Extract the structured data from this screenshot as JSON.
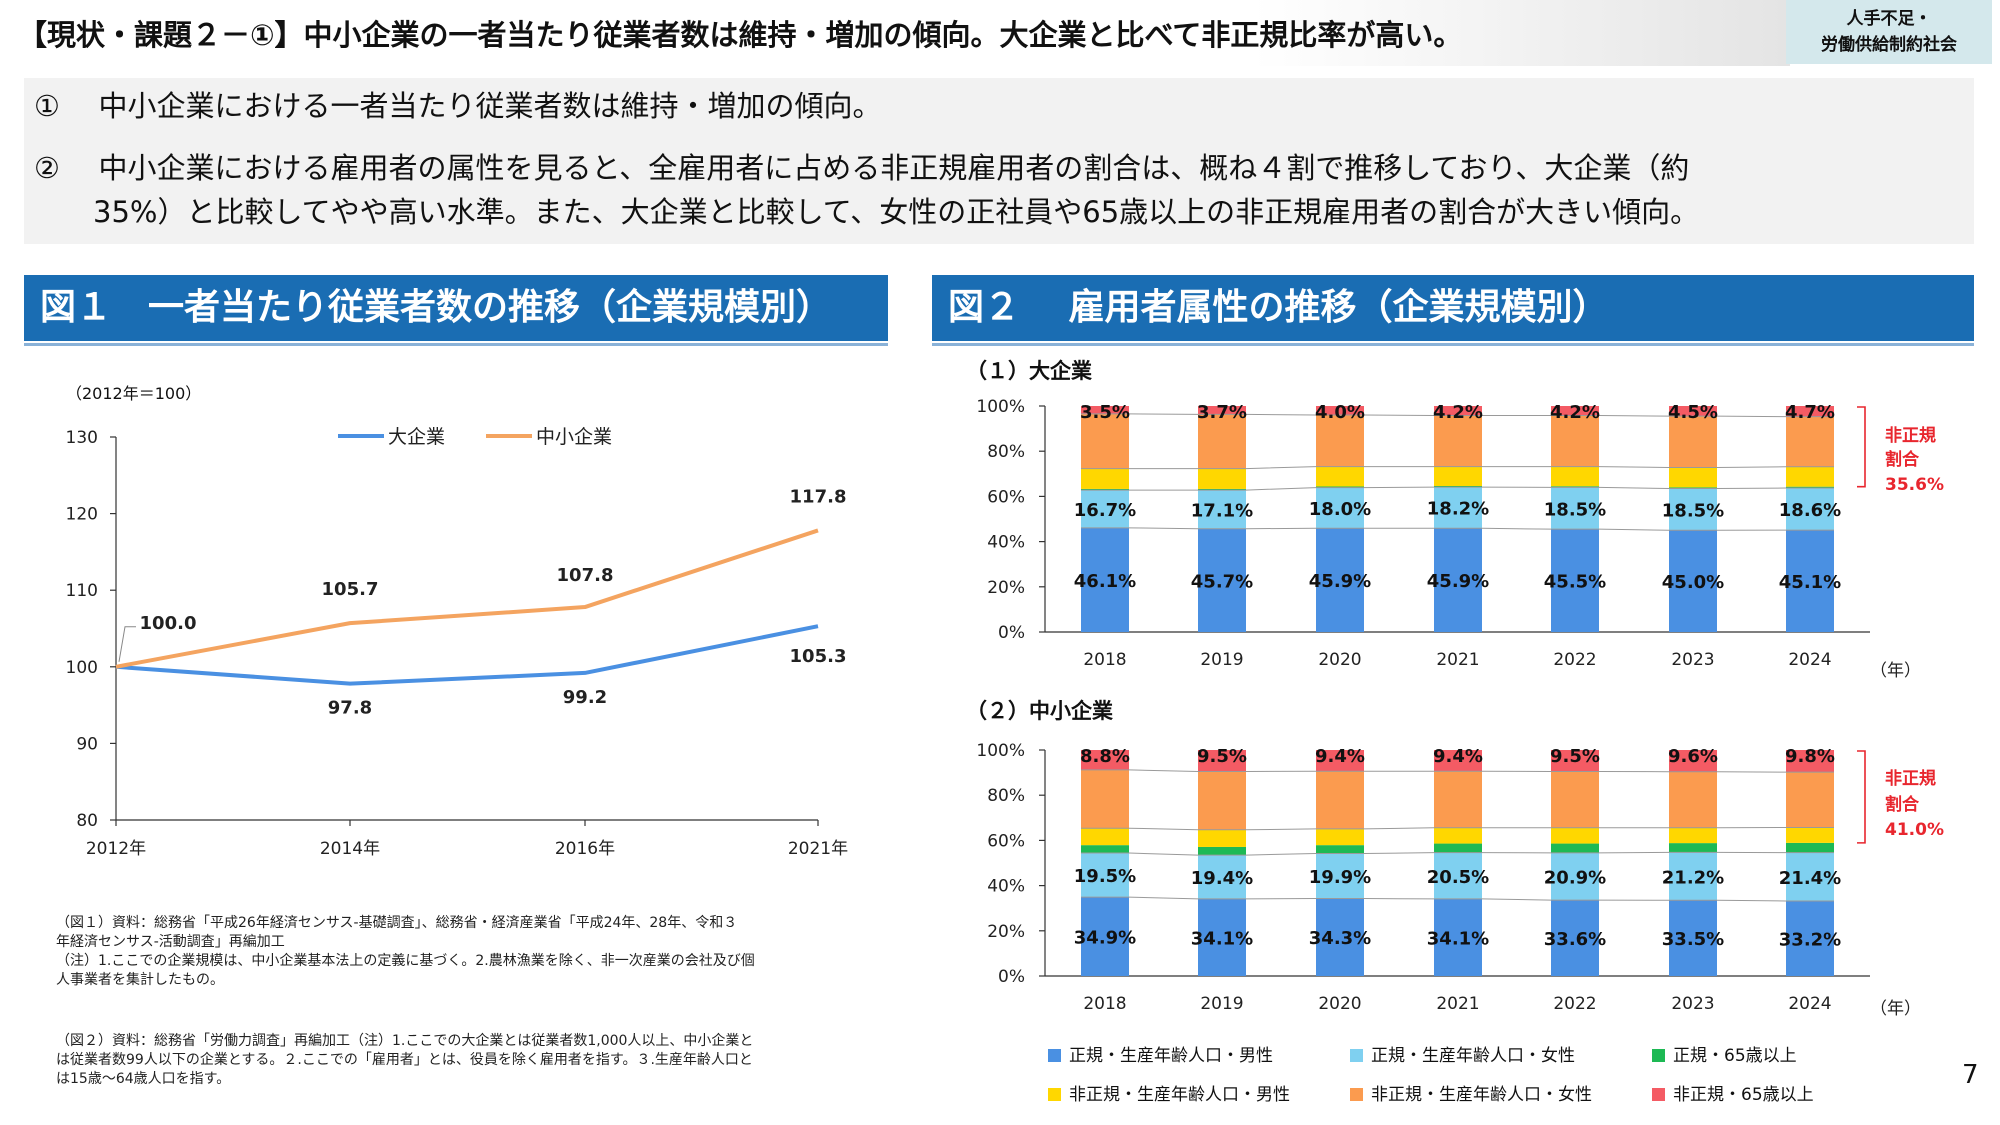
{
  "header": {
    "title": "【現状・課題２－①】中小企業の一者当たり従業者数は維持・増加の傾向。大企業と比べて非正規比率が高い。",
    "tag_line1": "人手不足・",
    "tag_line2": "労働供給制約社会"
  },
  "summary": {
    "item1_num": "①",
    "item1_text": "中小企業における一者当たり従業者数は維持・増加の傾向。",
    "item2_num": "②",
    "item2_line1": "中小企業における雇用者の属性を見ると、全雇用者に占める非正規雇用者の割合は、概ね４割で推移しており、大企業（約",
    "item2_line2": "35%）と比較してやや高い水準。また、大企業と比較して、女性の正社員や65歳以上の非正規雇用者の割合が大きい傾向。"
  },
  "fig1": {
    "header": "図１　一者当たり従業者数の推移（企業規模別）",
    "note_top": "（2012年＝100）",
    "notes": [
      "（図１）資料：総務省「平成26年経済センサス-基礎調査」、総務省・経済産業省「平成24年、28年、令和３",
      "年経済センサス-活動調査」再編加工",
      "（注）1.ここでの企業規模は、中小企業基本法上の定義に基づく。2.農林漁業を除く、非一次産業の会社及び個",
      "人事業者を集計したもの。"
    ]
  },
  "fig2": {
    "header": "図２　 雇用者属性の推移（企業規模別）",
    "notes": [
      "（図２）資料：総務省「労働力調査」再編加工（注）1.ここでの大企業とは従業者数1,000人以上、中小企業と",
      "は従業者数99人以下の企業とする。２.ここでの「雇用者」とは、役員を除く雇用者を指す。３.生産年齢人口と",
      "は15歳～64歳人口を指す。"
    ],
    "legend": [
      {
        "label": "正規・生産年齢人口・男性",
        "color": "#4a90e2"
      },
      {
        "label": "正規・生産年齢人口・女性",
        "color": "#7fd0f0"
      },
      {
        "label": "正規・65歳以上",
        "color": "#1db954"
      },
      {
        "label": "非正規・生産年齢人口・男性",
        "color": "#ffd700"
      },
      {
        "label": "非正規・生産年齢人口・女性",
        "color": "#fb9b4f"
      },
      {
        "label": "非正規・65歳以上",
        "color": "#f45b64"
      }
    ]
  },
  "page_number": "7",
  "chart_data": [
    {
      "type": "line",
      "title": "",
      "ylabel": "",
      "x": [
        "2012年",
        "2014年",
        "2016年",
        "2021年"
      ],
      "ylim": [
        80,
        130
      ],
      "yticks": [
        80,
        90,
        100,
        110,
        120,
        130
      ],
      "legend_position": "top",
      "series": [
        {
          "name": "大企業",
          "values": [
            100.0,
            97.8,
            99.2,
            105.3
          ],
          "color": "#4a90e2",
          "labels": [
            "",
            "97.8",
            "99.2",
            "105.3"
          ]
        },
        {
          "name": "中小企業",
          "values": [
            100.0,
            105.7,
            107.8,
            117.8
          ],
          "color": "#f4a460",
          "labels": [
            "100.0",
            "105.7",
            "107.8",
            "117.8"
          ]
        }
      ]
    },
    {
      "type": "bar",
      "stacked": true,
      "title": "（１）大企業",
      "unit_label": "（年）",
      "categories": [
        "2018",
        "2019",
        "2020",
        "2021",
        "2022",
        "2023",
        "2024"
      ],
      "ylim": [
        0,
        100
      ],
      "yticks": [
        "0%",
        "20%",
        "40%",
        "60%",
        "80%",
        "100%"
      ],
      "series": [
        {
          "name": "正規・生産年齢人口・男性",
          "values": [
            46.1,
            45.7,
            45.9,
            45.9,
            45.5,
            45.0,
            45.1
          ],
          "labels": [
            "46.1%",
            "45.7%",
            "45.9%",
            "45.9%",
            "45.5%",
            "45.0%",
            "45.1%"
          ]
        },
        {
          "name": "正規・生産年齢人口・女性",
          "values": [
            16.7,
            17.1,
            18.0,
            18.2,
            18.5,
            18.5,
            18.6
          ],
          "labels": [
            "16.7%",
            "17.1%",
            "18.0%",
            "18.2%",
            "18.5%",
            "18.5%",
            "18.6%"
          ]
        },
        {
          "name": "正規・65歳以上",
          "values": [
            0.5,
            0.5,
            0.5,
            0.5,
            0.5,
            0.5,
            0.6
          ]
        },
        {
          "name": "非正規・生産年齢人口・男性",
          "values": [
            9.0,
            9.0,
            8.8,
            8.6,
            8.7,
            8.8,
            8.8
          ]
        },
        {
          "name": "非正規・生産年齢人口・女性",
          "values": [
            24.2,
            24.0,
            22.8,
            22.6,
            22.6,
            22.7,
            22.2
          ]
        },
        {
          "name": "非正規・65歳以上",
          "values": [
            3.5,
            3.7,
            4.0,
            4.2,
            4.2,
            4.5,
            4.7
          ],
          "labels": [
            "3.5%",
            "3.7%",
            "4.0%",
            "4.2%",
            "4.2%",
            "4.5%",
            "4.7%"
          ]
        }
      ],
      "bracket_label": [
        "非正規",
        "割合"
      ],
      "bracket_value": "35.6%"
    },
    {
      "type": "bar",
      "stacked": true,
      "title": "（２）中小企業",
      "unit_label": "（年）",
      "categories": [
        "2018",
        "2019",
        "2020",
        "2021",
        "2022",
        "2023",
        "2024"
      ],
      "ylim": [
        0,
        100
      ],
      "yticks": [
        "0%",
        "20%",
        "40%",
        "60%",
        "80%",
        "100%"
      ],
      "series": [
        {
          "name": "正規・生産年齢人口・男性",
          "values": [
            34.9,
            34.1,
            34.3,
            34.1,
            33.6,
            33.5,
            33.2
          ],
          "labels": [
            "34.9%",
            "34.1%",
            "34.3%",
            "34.1%",
            "33.6%",
            "33.5%",
            "33.2%"
          ]
        },
        {
          "name": "正規・生産年齢人口・女性",
          "values": [
            19.5,
            19.4,
            19.9,
            20.5,
            20.9,
            21.2,
            21.4
          ],
          "labels": [
            "19.5%",
            "19.4%",
            "19.9%",
            "20.5%",
            "20.9%",
            "21.2%",
            "21.4%"
          ]
        },
        {
          "name": "正規・65歳以上",
          "values": [
            3.5,
            3.6,
            3.7,
            4.0,
            4.1,
            4.1,
            4.3
          ]
        },
        {
          "name": "非正規・生産年齢人口・男性",
          "values": [
            7.5,
            7.6,
            7.2,
            7.0,
            7.0,
            6.8,
            6.8
          ]
        },
        {
          "name": "非正規・生産年齢人口・女性",
          "values": [
            25.8,
            25.8,
            25.5,
            25.0,
            24.9,
            24.8,
            24.5
          ]
        },
        {
          "name": "非正規・65歳以上",
          "values": [
            8.8,
            9.5,
            9.4,
            9.4,
            9.5,
            9.6,
            9.8
          ],
          "labels": [
            "8.8%",
            "9.5%",
            "9.4%",
            "9.4%",
            "9.5%",
            "9.6%",
            "9.8%"
          ]
        }
      ],
      "bracket_label": [
        "非正規",
        "割合"
      ],
      "bracket_value": "41.0%"
    }
  ]
}
